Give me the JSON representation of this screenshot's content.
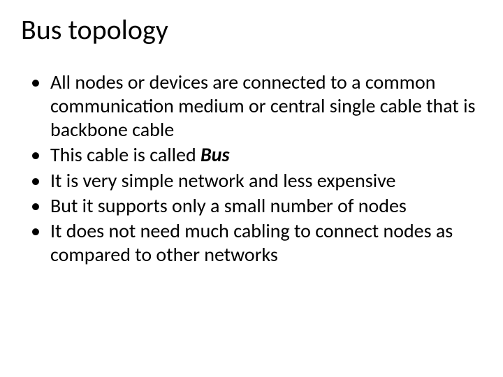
{
  "slide": {
    "title": "Bus topology",
    "bullets": [
      {
        "text": "All nodes or devices are connected to a common communication medium or central single cable that is backbone cable"
      },
      {
        "prefix": "This cable is called ",
        "bold": "Bus"
      },
      {
        "text": "It is very simple network and less expensive"
      },
      {
        "text": "But it supports only a small number of nodes"
      },
      {
        "text": "It does not need much cabling to connect nodes as compared to other networks"
      }
    ]
  },
  "style": {
    "background_color": "#ffffff",
    "text_color": "#000000",
    "title_fontsize": 40,
    "body_fontsize": 28,
    "font_family": "Calibri"
  }
}
